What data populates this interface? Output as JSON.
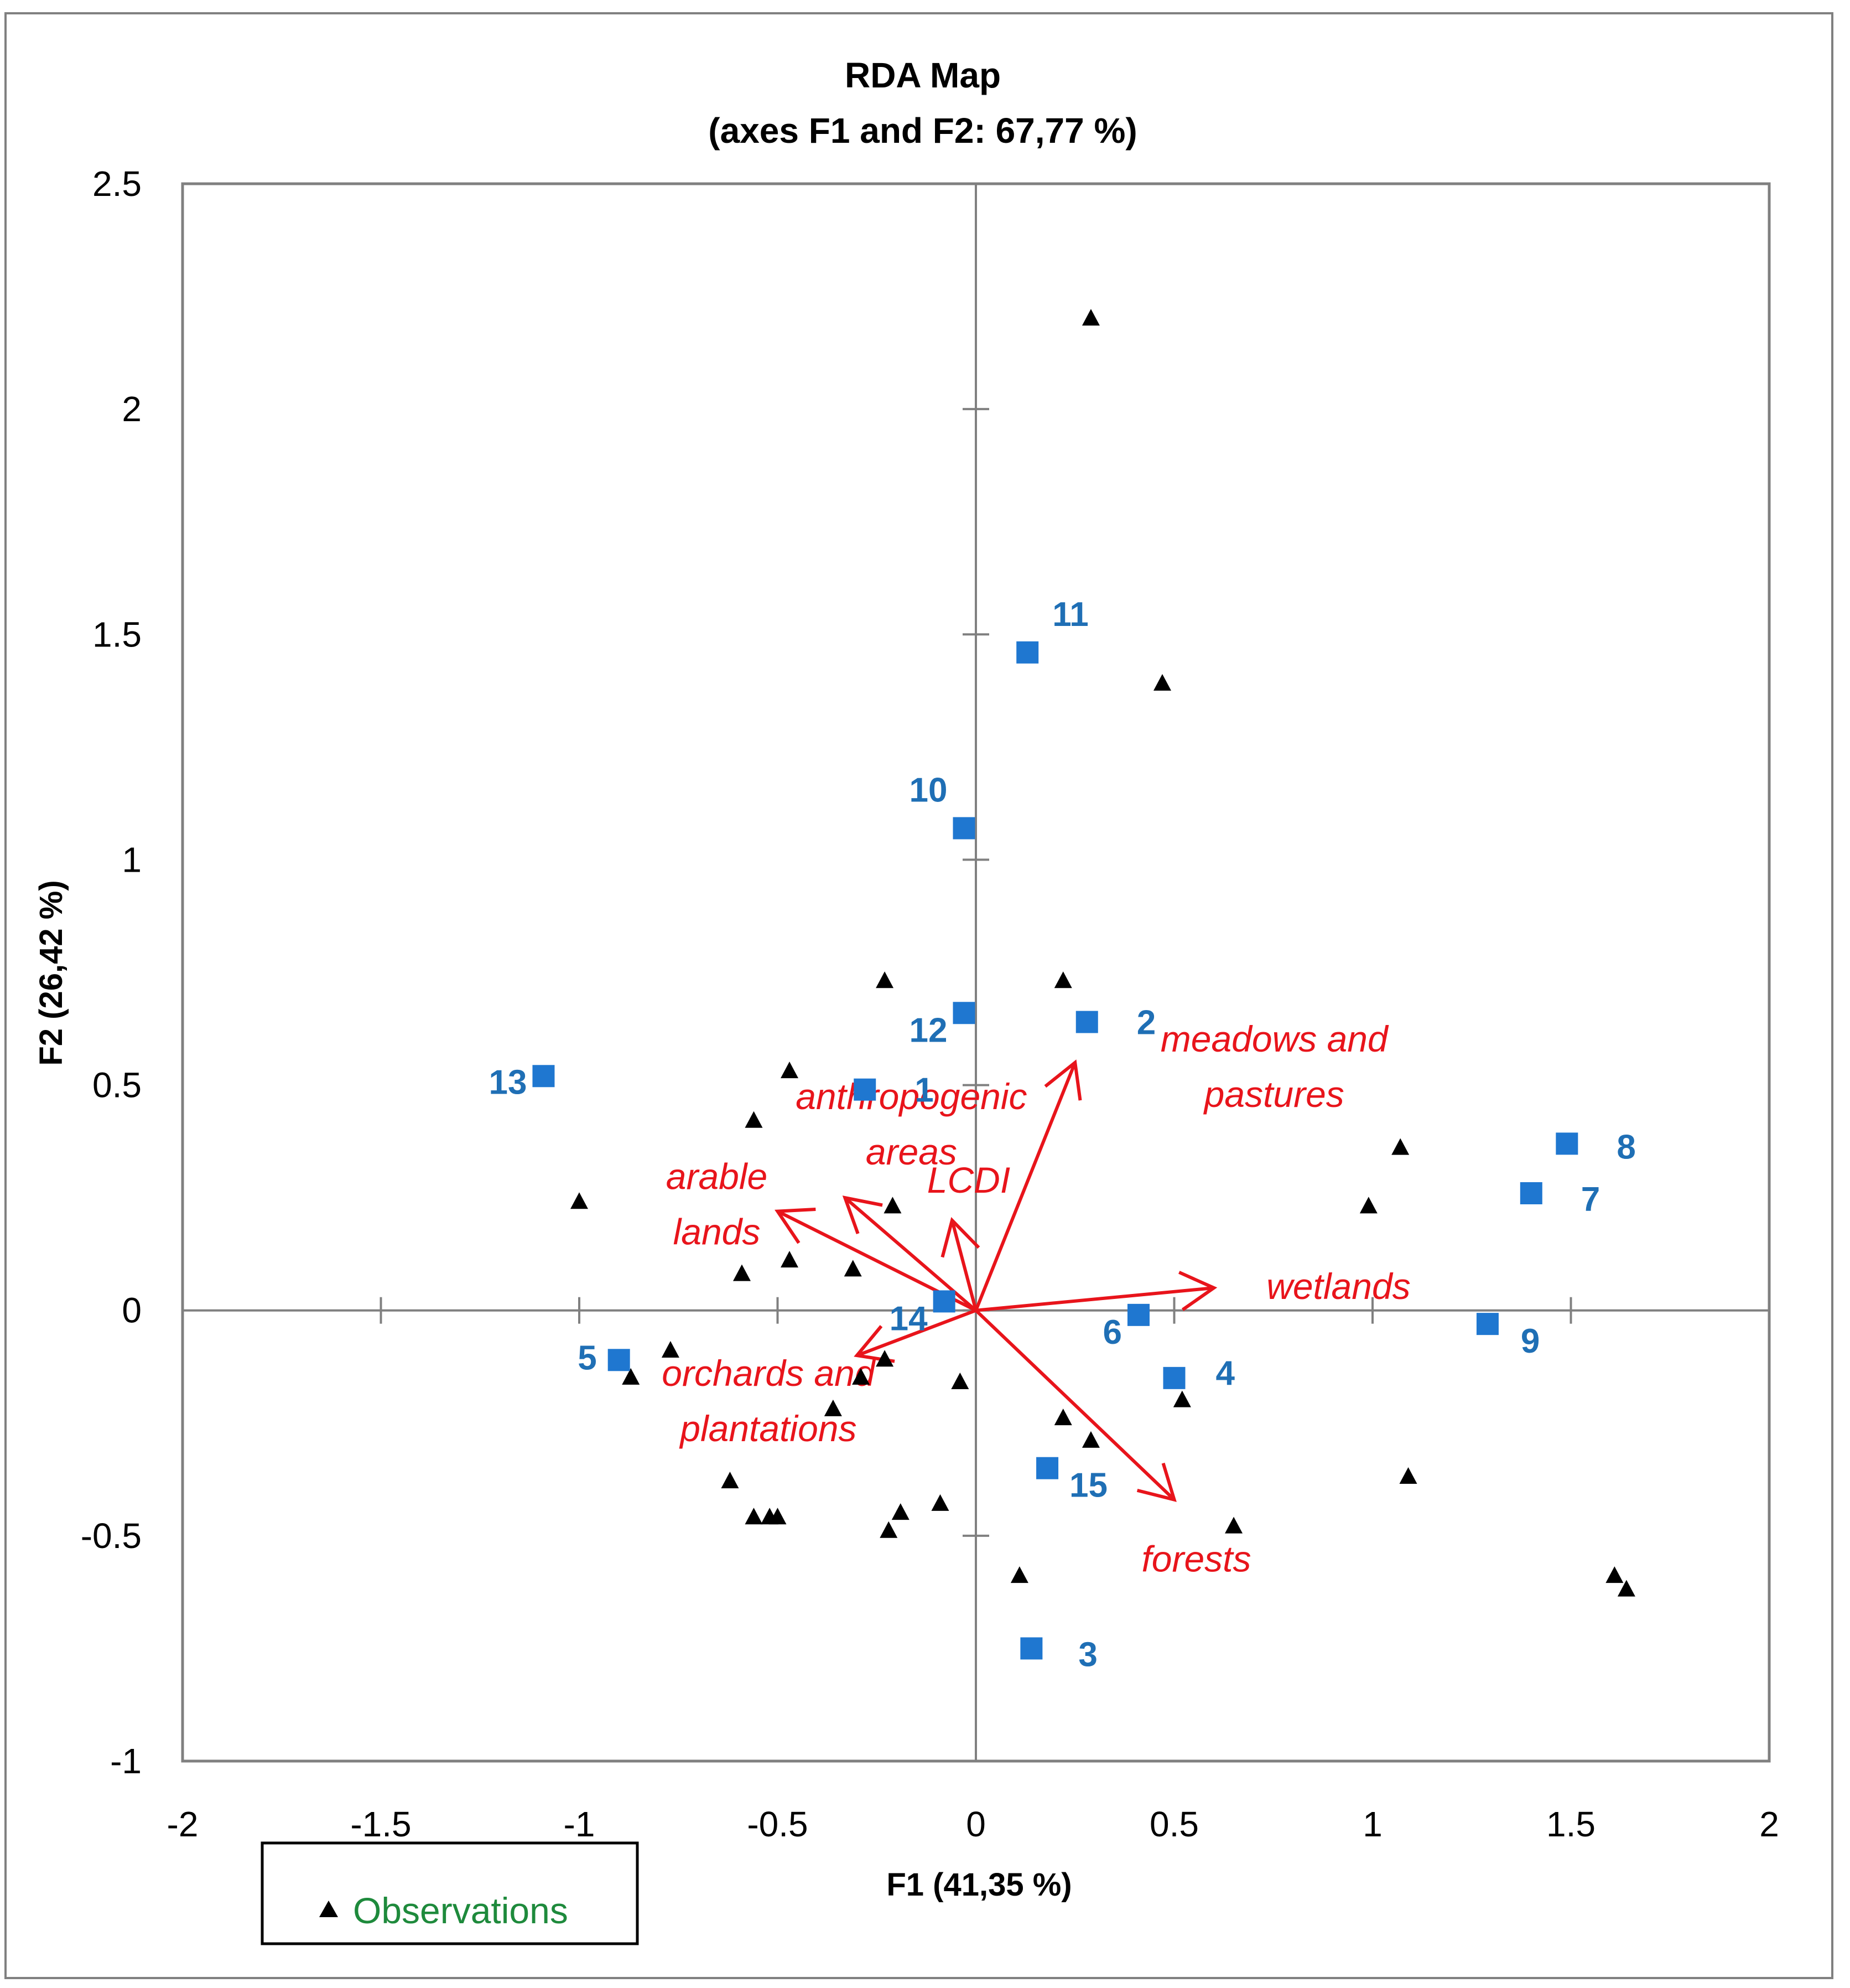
{
  "chart_data": {
    "type": "scatter",
    "title": [
      "RDA Map",
      "(axes F1 and F2: 67,77 %)"
    ],
    "xlabel": "F1 (41,35 %)",
    "ylabel": "F2 (26,42 %)",
    "xlim": [
      -2,
      2
    ],
    "ylim": [
      -1,
      2.5
    ],
    "xticks": [
      -2,
      -1.5,
      -1,
      -0.5,
      0,
      0.5,
      1,
      1.5,
      2
    ],
    "yticks": [
      -1,
      -0.5,
      0,
      0.5,
      1,
      1.5,
      2,
      2.5
    ],
    "xtick_labels": [
      "-2",
      "-1.5",
      "-1",
      "-0.5",
      "0",
      "0.5",
      "1",
      "1.5",
      "2"
    ],
    "ytick_labels": [
      "-1",
      "-0.5",
      "0",
      "0.5",
      "1",
      "1.5",
      "2",
      "2.5"
    ],
    "legend": {
      "position": "bottom-left",
      "entries": [
        "Observations"
      ]
    },
    "colors": {
      "sites": "#1f77d0",
      "site_labels": "#1f6fb5",
      "variables": "#e8141b",
      "observations": "#000000",
      "legend_text": "#1e8a3c",
      "axes": "#808080"
    },
    "series": [
      {
        "name": "Observations",
        "marker": "triangle",
        "points": [
          {
            "x": 0.29,
            "y": 2.2
          },
          {
            "x": 0.47,
            "y": 1.39
          },
          {
            "x": -0.23,
            "y": 0.73
          },
          {
            "x": 0.22,
            "y": 0.73
          },
          {
            "x": -0.47,
            "y": 0.53
          },
          {
            "x": -0.56,
            "y": 0.42
          },
          {
            "x": -1.0,
            "y": 0.24
          },
          {
            "x": -0.21,
            "y": 0.23
          },
          {
            "x": 1.07,
            "y": 0.36
          },
          {
            "x": 0.99,
            "y": 0.23
          },
          {
            "x": -0.47,
            "y": 0.11
          },
          {
            "x": -0.59,
            "y": 0.08
          },
          {
            "x": -0.31,
            "y": 0.09
          },
          {
            "x": -0.77,
            "y": -0.09
          },
          {
            "x": -0.87,
            "y": -0.15
          },
          {
            "x": -0.23,
            "y": -0.11
          },
          {
            "x": -0.29,
            "y": -0.15
          },
          {
            "x": -0.36,
            "y": -0.22
          },
          {
            "x": -0.04,
            "y": -0.16
          },
          {
            "x": 0.52,
            "y": -0.2
          },
          {
            "x": 0.22,
            "y": -0.24
          },
          {
            "x": 0.29,
            "y": -0.29
          },
          {
            "x": 1.09,
            "y": -0.37
          },
          {
            "x": -0.62,
            "y": -0.38
          },
          {
            "x": -0.56,
            "y": -0.46
          },
          {
            "x": -0.52,
            "y": -0.46
          },
          {
            "x": -0.5,
            "y": -0.46
          },
          {
            "x": -0.19,
            "y": -0.45
          },
          {
            "x": -0.09,
            "y": -0.43
          },
          {
            "x": -0.22,
            "y": -0.49
          },
          {
            "x": 0.65,
            "y": -0.48
          },
          {
            "x": 0.11,
            "y": -0.59
          },
          {
            "x": 1.61,
            "y": -0.59
          },
          {
            "x": 1.64,
            "y": -0.62
          }
        ]
      },
      {
        "name": "Sites",
        "marker": "square",
        "points": [
          {
            "label": "1",
            "x": -0.28,
            "y": 0.49
          },
          {
            "label": "2",
            "x": 0.28,
            "y": 0.64
          },
          {
            "label": "3",
            "x": 0.14,
            "y": -0.75
          },
          {
            "label": "4",
            "x": 0.5,
            "y": -0.15
          },
          {
            "label": "5",
            "x": -0.9,
            "y": -0.11
          },
          {
            "label": "6",
            "x": 0.41,
            "y": -0.01
          },
          {
            "label": "7",
            "x": 1.4,
            "y": 0.26
          },
          {
            "label": "8",
            "x": 1.49,
            "y": 0.37
          },
          {
            "label": "9",
            "x": 1.29,
            "y": -0.03
          },
          {
            "label": "10",
            "x": -0.03,
            "y": 1.07
          },
          {
            "label": "11",
            "x": 0.13,
            "y": 1.46
          },
          {
            "label": "12",
            "x": -0.03,
            "y": 0.66
          },
          {
            "label": "13",
            "x": -1.09,
            "y": 0.52
          },
          {
            "label": "14",
            "x": -0.08,
            "y": 0.02
          },
          {
            "label": "15",
            "x": 0.18,
            "y": -0.35
          }
        ]
      }
    ],
    "variables": [
      {
        "lines": [
          "meadows and",
          "pastures"
        ],
        "x": 0.25,
        "y": 0.55
      },
      {
        "lines": [
          "anthropogenic",
          "areas"
        ],
        "x": -0.33,
        "y": 0.25
      },
      {
        "lines": [
          "LCDI"
        ],
        "x": -0.06,
        "y": 0.2
      },
      {
        "lines": [
          "arable",
          "lands"
        ],
        "x": -0.5,
        "y": 0.22
      },
      {
        "lines": [
          "wetlands"
        ],
        "x": 0.6,
        "y": 0.05
      },
      {
        "lines": [
          "orchards and",
          "plantations"
        ],
        "x": -0.3,
        "y": -0.1
      },
      {
        "lines": [
          "forests"
        ],
        "x": 0.5,
        "y": -0.42
      }
    ]
  }
}
